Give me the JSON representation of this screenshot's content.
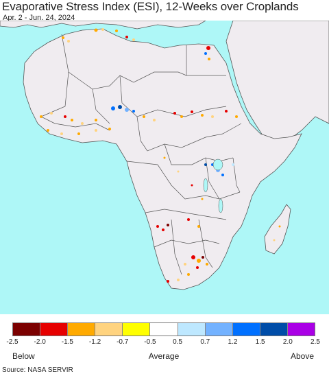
{
  "title": "Evaporative Stress Index (ESI), 12-Weeks over Croplands",
  "subtitle": "Apr. 2 - Jun. 24, 2024",
  "legend": {
    "colors": [
      "#7b0000",
      "#e60000",
      "#ffaa00",
      "#ffd37f",
      "#ffff00",
      "#ffffff",
      "#bee8ff",
      "#73b2ff",
      "#0070ff",
      "#004da8",
      "#aa00e6"
    ],
    "ticks": [
      "-2.5",
      "-2.0",
      "-1.5",
      "-1.2",
      "-0.7",
      "-0.5",
      "0.5",
      "0.7",
      "1.2",
      "1.5",
      "2.0",
      "2.5"
    ],
    "below_label": "Below",
    "average_label": "Average",
    "above_label": "Above"
  },
  "source": "Source: NASA SERVIR",
  "map": {
    "ocean_color": "#aef7f7",
    "land_color": "#f0ecf0"
  }
}
